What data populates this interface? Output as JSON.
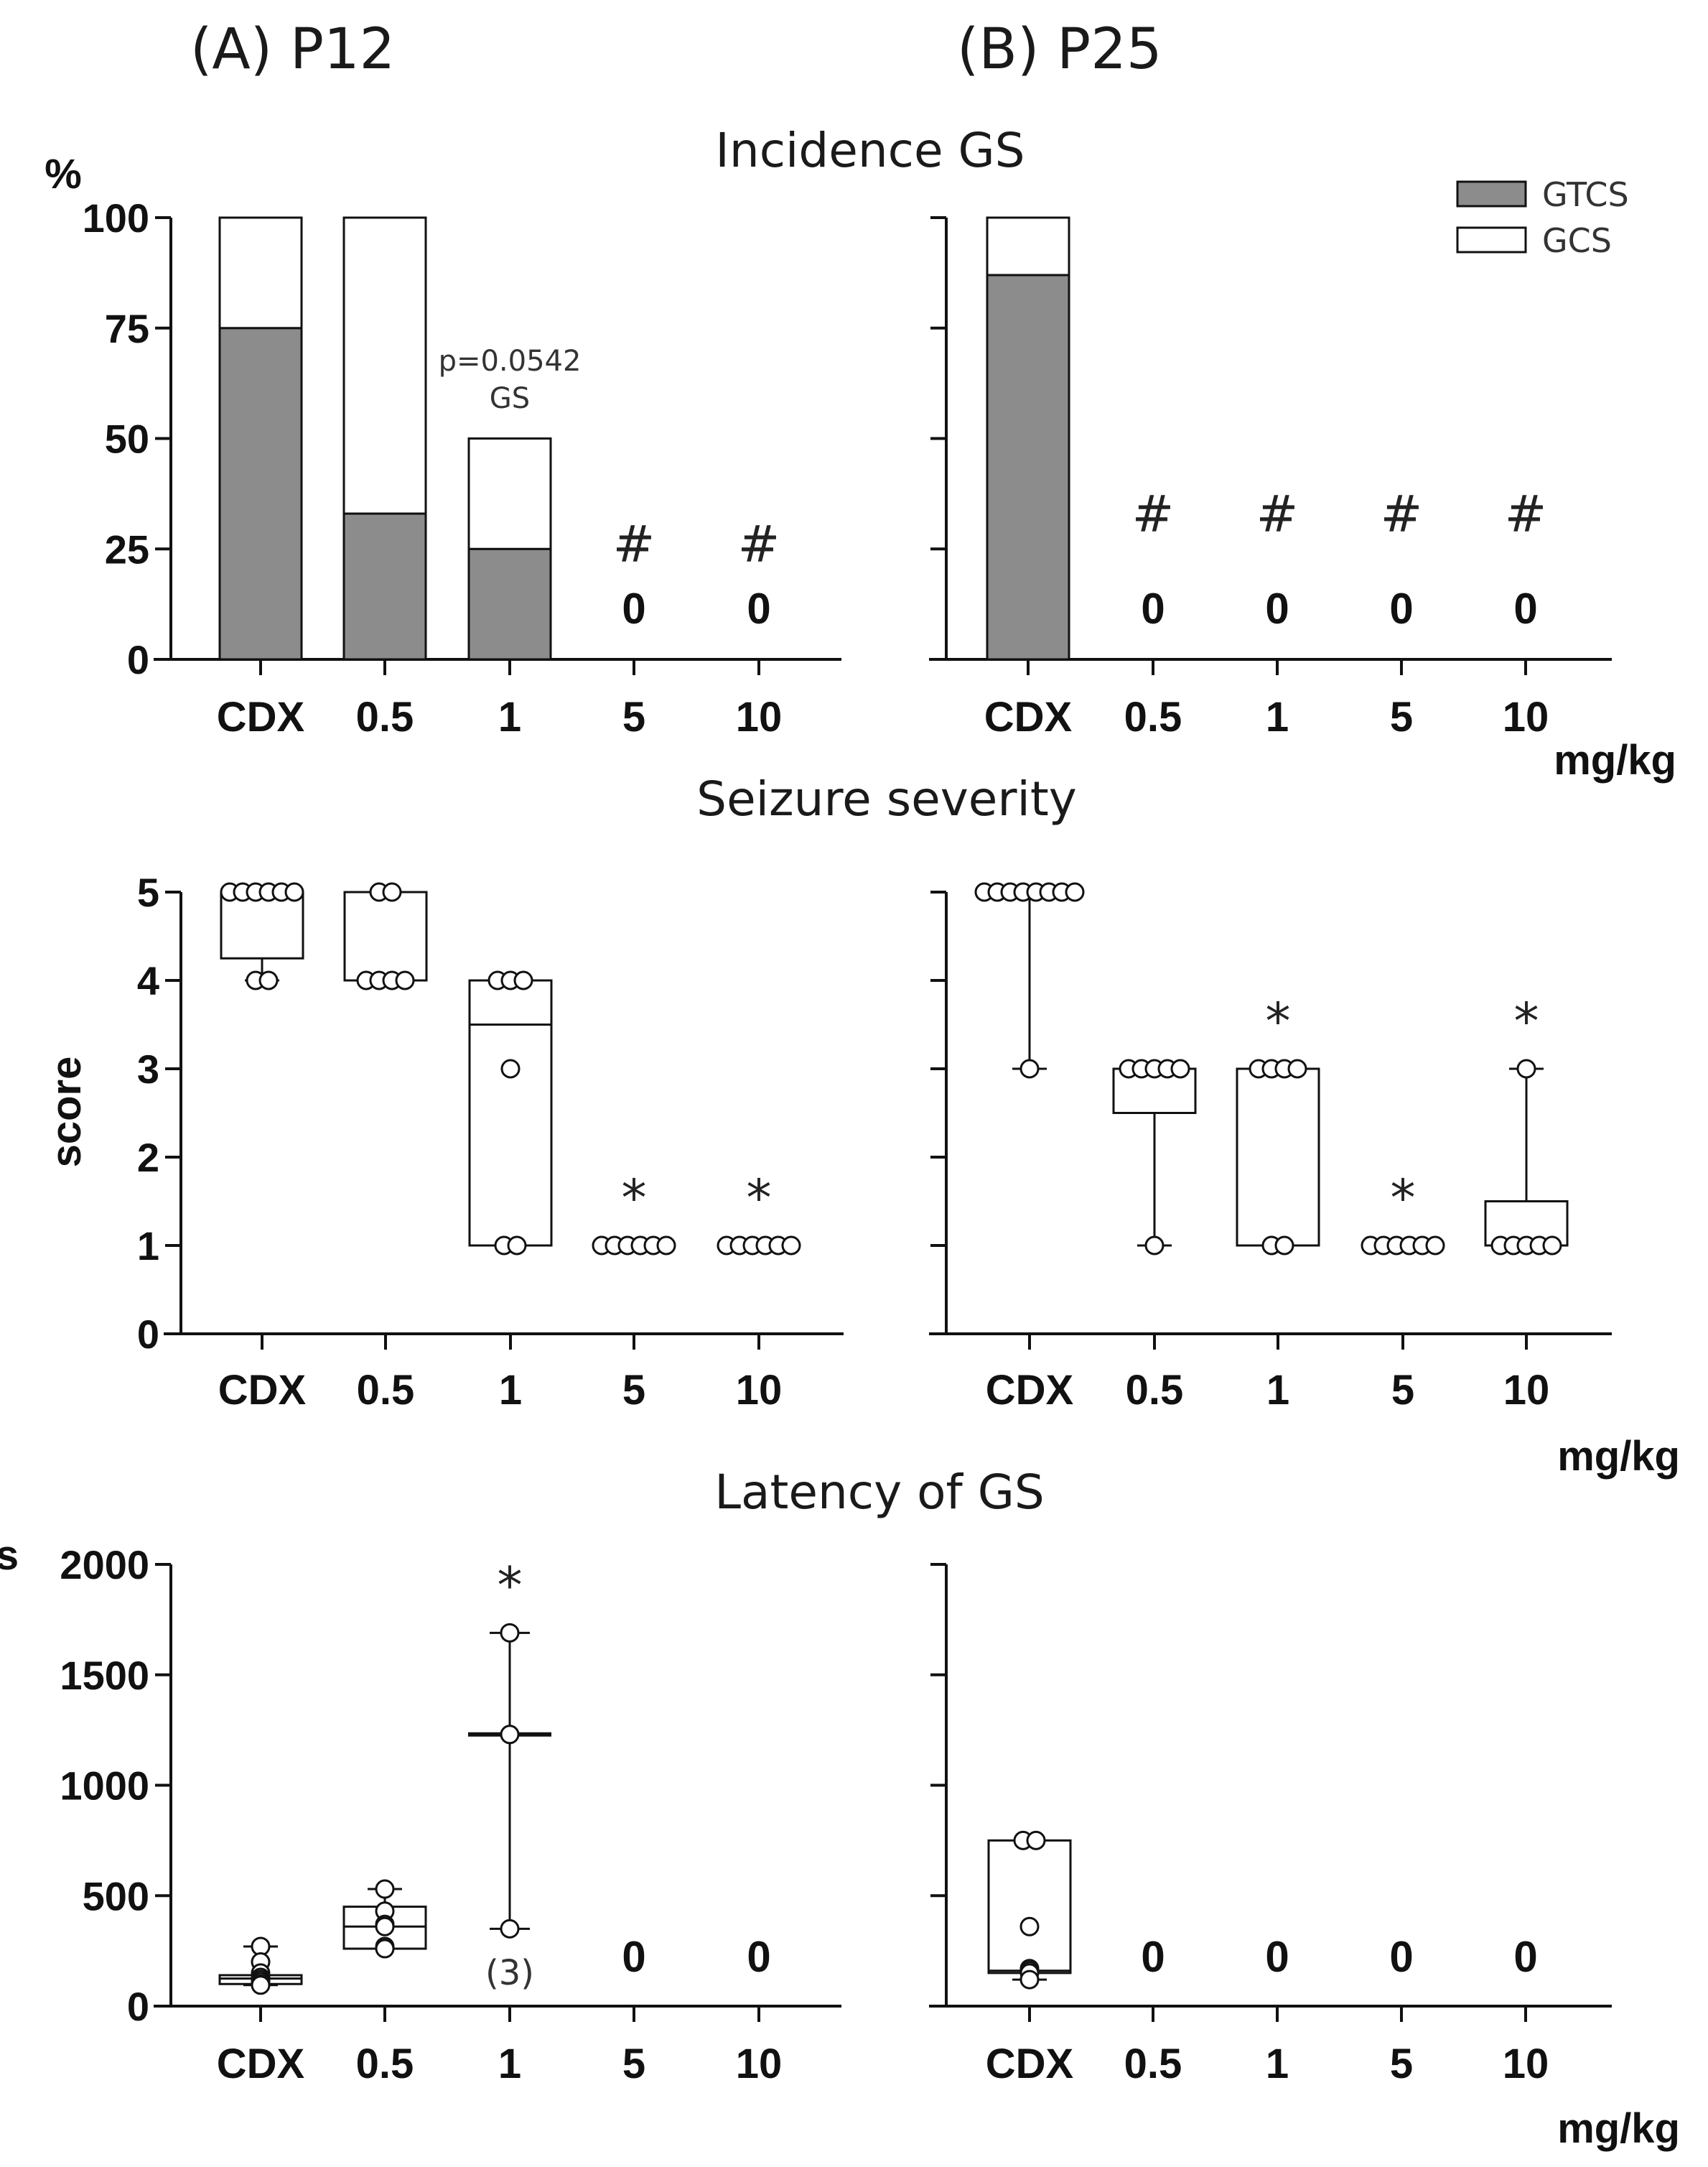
{
  "panel_labels": {
    "a": "(A) P12",
    "b": "(B) P25"
  },
  "unit_label": "mg/kg",
  "colors": {
    "gtcs": "#8c8c8c",
    "gcs": "#ffffff",
    "axis": "#111111"
  },
  "chart_data": [
    {
      "id": "incidence",
      "type": "bar",
      "title": "Incidence GS",
      "ylabel": "%",
      "ylim": [
        0,
        100
      ],
      "yticks": [
        "0",
        "25",
        "50",
        "75",
        "100"
      ],
      "categories": [
        "CDX",
        "0.5",
        "1",
        "5",
        "10"
      ],
      "legend": {
        "position": "top-right",
        "items": [
          "GTCS",
          "GCS"
        ]
      },
      "panels": [
        {
          "name": "P12",
          "series": [
            {
              "name": "GTCS",
              "values": [
                75,
                33,
                25,
                0,
                0
              ]
            },
            {
              "name": "GCS",
              "values": [
                25,
                67,
                25,
                0,
                0
              ]
            }
          ],
          "zero_labels": [
            "",
            "",
            "",
            "0",
            "0"
          ],
          "markers": [
            "",
            "",
            "",
            "#",
            "#"
          ],
          "annotation": {
            "category": "1",
            "lines": [
              "p=0.0542",
              "GS"
            ]
          }
        },
        {
          "name": "P25",
          "series": [
            {
              "name": "GTCS",
              "values": [
                87,
                0,
                0,
                0,
                0
              ]
            },
            {
              "name": "GCS",
              "values": [
                13,
                0,
                0,
                0,
                0
              ]
            }
          ],
          "zero_labels": [
            "",
            "0",
            "0",
            "0",
            "0"
          ],
          "markers": [
            "",
            "#",
            "#",
            "#",
            "#"
          ]
        }
      ]
    },
    {
      "id": "severity",
      "type": "box",
      "title": "Seizure severity",
      "ylabel": "score",
      "ylim": [
        0,
        5
      ],
      "yticks": [
        "0",
        "1",
        "2",
        "3",
        "4",
        "5"
      ],
      "categories": [
        "CDX",
        "0.5",
        "1",
        "5",
        "10"
      ],
      "panels": [
        {
          "name": "P12",
          "groups": [
            {
              "points": [
                5,
                5,
                5,
                5,
                5,
                5,
                4,
                4
              ],
              "q1": 4.25,
              "median": 5,
              "q3": 5,
              "min": 4,
              "max": 5
            },
            {
              "points": [
                5,
                5,
                4,
                4,
                4,
                4
              ],
              "q1": 4,
              "median": 4,
              "q3": 5,
              "min": 4,
              "max": 5
            },
            {
              "points": [
                4,
                4,
                4,
                3,
                1,
                1
              ],
              "q1": 1,
              "median": 3.5,
              "q3": 4,
              "min": 1,
              "max": 4
            },
            {
              "points": [
                1,
                1,
                1,
                1,
                1,
                1
              ],
              "q1": 1,
              "median": 1,
              "q3": 1,
              "min": 1,
              "max": 1
            },
            {
              "points": [
                1,
                1,
                1,
                1,
                1,
                1
              ],
              "q1": 1,
              "median": 1,
              "q3": 1,
              "min": 1,
              "max": 1
            }
          ],
          "markers": [
            "",
            "",
            "",
            "*",
            "*"
          ]
        },
        {
          "name": "P25",
          "groups": [
            {
              "points": [
                5,
                5,
                5,
                5,
                5,
                5,
                5,
                5,
                3
              ],
              "q1": 5,
              "median": 5,
              "q3": 5,
              "min": 3,
              "max": 5
            },
            {
              "points": [
                3,
                3,
                3,
                3,
                3,
                1
              ],
              "q1": 2.5,
              "median": 3,
              "q3": 3,
              "min": 1,
              "max": 3
            },
            {
              "points": [
                3,
                3,
                3,
                3,
                1,
                1
              ],
              "q1": 1,
              "median": 3,
              "q3": 3,
              "min": 1,
              "max": 3
            },
            {
              "points": [
                1,
                1,
                1,
                1,
                1,
                1
              ],
              "q1": 1,
              "median": 1,
              "q3": 1,
              "min": 1,
              "max": 1
            },
            {
              "points": [
                3,
                1,
                1,
                1,
                1,
                1
              ],
              "q1": 1,
              "median": 1,
              "q3": 1.5,
              "min": 1,
              "max": 3
            }
          ],
          "markers": [
            "",
            "",
            "*",
            "*",
            "*"
          ]
        }
      ]
    },
    {
      "id": "latency",
      "type": "box",
      "title": "Latency of GS",
      "ylabel": "s",
      "ylim": [
        0,
        2000
      ],
      "yticks": [
        "0",
        "500",
        "1000",
        "1500",
        "2000"
      ],
      "categories": [
        "CDX",
        "0.5",
        "1",
        "5",
        "10"
      ],
      "panels": [
        {
          "name": "P12",
          "groups": [
            {
              "points": [
                270,
                200,
                150,
                130,
                120,
                110,
                100,
                95
              ],
              "q1": 100,
              "median": 125,
              "q3": 140,
              "min": 95,
              "max": 270
            },
            {
              "points": [
                530,
                430,
                370,
                360,
                270,
                260
              ],
              "q1": 260,
              "median": 360,
              "q3": 450,
              "min": 260,
              "max": 530
            },
            {
              "points": [
                1690,
                1230,
                350
              ],
              "q1": 350,
              "median": 1230,
              "q3": 1690,
              "min": 350,
              "max": 1690,
              "style": "median-range"
            },
            null,
            null
          ],
          "zero_labels": [
            "",
            "",
            "",
            "0",
            "0"
          ],
          "markers": [
            "",
            "",
            "*",
            "",
            ""
          ],
          "n_label": {
            "category": "1",
            "text": "(3)"
          }
        },
        {
          "name": "P25",
          "groups": [
            {
              "points": [
                750,
                750,
                360,
                170,
                160,
                150,
                120
              ],
              "q1": 150,
              "median": 160,
              "q3": 750,
              "min": 120,
              "max": 750
            },
            null,
            null,
            null,
            null
          ],
          "zero_labels": [
            "",
            "0",
            "0",
            "0",
            "0"
          ],
          "markers": [
            "",
            "",
            "",
            "",
            ""
          ]
        }
      ]
    }
  ]
}
